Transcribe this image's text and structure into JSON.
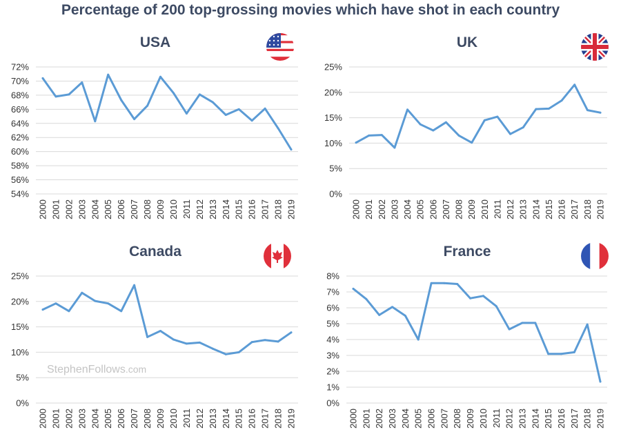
{
  "title": "Percentage of 200 top-grossing movies which have shot in each country",
  "watermark": {
    "main": "StephenFollows",
    "suffix": ".com"
  },
  "colors": {
    "line": "#5b9bd5",
    "title": "#3d4a63",
    "grid": "#d9d9d9"
  },
  "chart_data": [
    {
      "type": "line",
      "title": "USA",
      "flag_icon": "usa-flag-icon",
      "categories": [
        "2000",
        "2001",
        "2002",
        "2003",
        "2004",
        "2005",
        "2006",
        "2007",
        "2008",
        "2009",
        "2010",
        "2011",
        "2012",
        "2013",
        "2014",
        "2015",
        "2016",
        "2017",
        "2018",
        "2019"
      ],
      "values": [
        70.4,
        67.8,
        68.1,
        69.8,
        64.3,
        70.9,
        67.3,
        64.6,
        66.5,
        70.6,
        68.3,
        65.4,
        68.1,
        67.0,
        65.2,
        66.0,
        64.4,
        66.1,
        63.3,
        60.3
      ],
      "yticks": [
        54,
        56,
        58,
        60,
        62,
        64,
        66,
        68,
        70,
        72
      ],
      "ytick_labels": [
        "54%",
        "56%",
        "58%",
        "60%",
        "62%",
        "64%",
        "66%",
        "68%",
        "70%",
        "72%"
      ],
      "ylim": [
        54,
        72
      ],
      "xlabel": "",
      "ylabel": ""
    },
    {
      "type": "line",
      "title": "UK",
      "flag_icon": "uk-flag-icon",
      "categories": [
        "2000",
        "2001",
        "2002",
        "2003",
        "2004",
        "2005",
        "2006",
        "2007",
        "2008",
        "2009",
        "2010",
        "2011",
        "2012",
        "2013",
        "2014",
        "2015",
        "2016",
        "2017",
        "2018",
        "2019"
      ],
      "values": [
        10.1,
        11.5,
        11.6,
        9.1,
        16.6,
        13.7,
        12.5,
        14.1,
        11.5,
        10.1,
        14.5,
        15.2,
        11.8,
        13.1,
        16.7,
        16.8,
        18.4,
        21.5,
        16.5,
        16.0
      ],
      "yticks": [
        0,
        5,
        10,
        15,
        20,
        25
      ],
      "ytick_labels": [
        "0%",
        "5%",
        "10%",
        "15%",
        "20%",
        "25%"
      ],
      "ylim": [
        0,
        25
      ],
      "xlabel": "",
      "ylabel": ""
    },
    {
      "type": "line",
      "title": "Canada",
      "flag_icon": "canada-flag-icon",
      "categories": [
        "2000",
        "2001",
        "2002",
        "2003",
        "2004",
        "2005",
        "2006",
        "2007",
        "2008",
        "2009",
        "2010",
        "2011",
        "2012",
        "2013",
        "2014",
        "2015",
        "2016",
        "2017",
        "2018",
        "2019"
      ],
      "values": [
        18.4,
        19.6,
        18.1,
        21.7,
        20.1,
        19.6,
        18.1,
        23.2,
        13.0,
        14.2,
        12.5,
        11.7,
        11.9,
        10.7,
        9.6,
        10.0,
        12.0,
        12.4,
        12.1,
        13.9
      ],
      "yticks": [
        0,
        5,
        10,
        15,
        20,
        25
      ],
      "ytick_labels": [
        "0%",
        "5%",
        "10%",
        "15%",
        "20%",
        "25%"
      ],
      "ylim": [
        0,
        25
      ],
      "xlabel": "",
      "ylabel": ""
    },
    {
      "type": "line",
      "title": "France",
      "flag_icon": "france-flag-icon",
      "categories": [
        "2000",
        "2001",
        "2002",
        "2003",
        "2004",
        "2005",
        "2006",
        "2007",
        "2008",
        "2009",
        "2010",
        "2011",
        "2012",
        "2013",
        "2014",
        "2015",
        "2016",
        "2017",
        "2018",
        "2019"
      ],
      "values": [
        7.2,
        6.55,
        5.55,
        6.05,
        5.5,
        4.0,
        7.55,
        7.55,
        7.5,
        6.6,
        6.75,
        6.1,
        4.65,
        5.05,
        5.05,
        3.1,
        3.1,
        3.2,
        4.95,
        1.35
      ],
      "yticks": [
        0,
        1,
        2,
        3,
        4,
        5,
        6,
        7,
        8
      ],
      "ytick_labels": [
        "0%",
        "1%",
        "2%",
        "3%",
        "4%",
        "5%",
        "6%",
        "7%",
        "8%"
      ],
      "ylim": [
        0,
        8
      ],
      "xlabel": "",
      "ylabel": ""
    }
  ]
}
